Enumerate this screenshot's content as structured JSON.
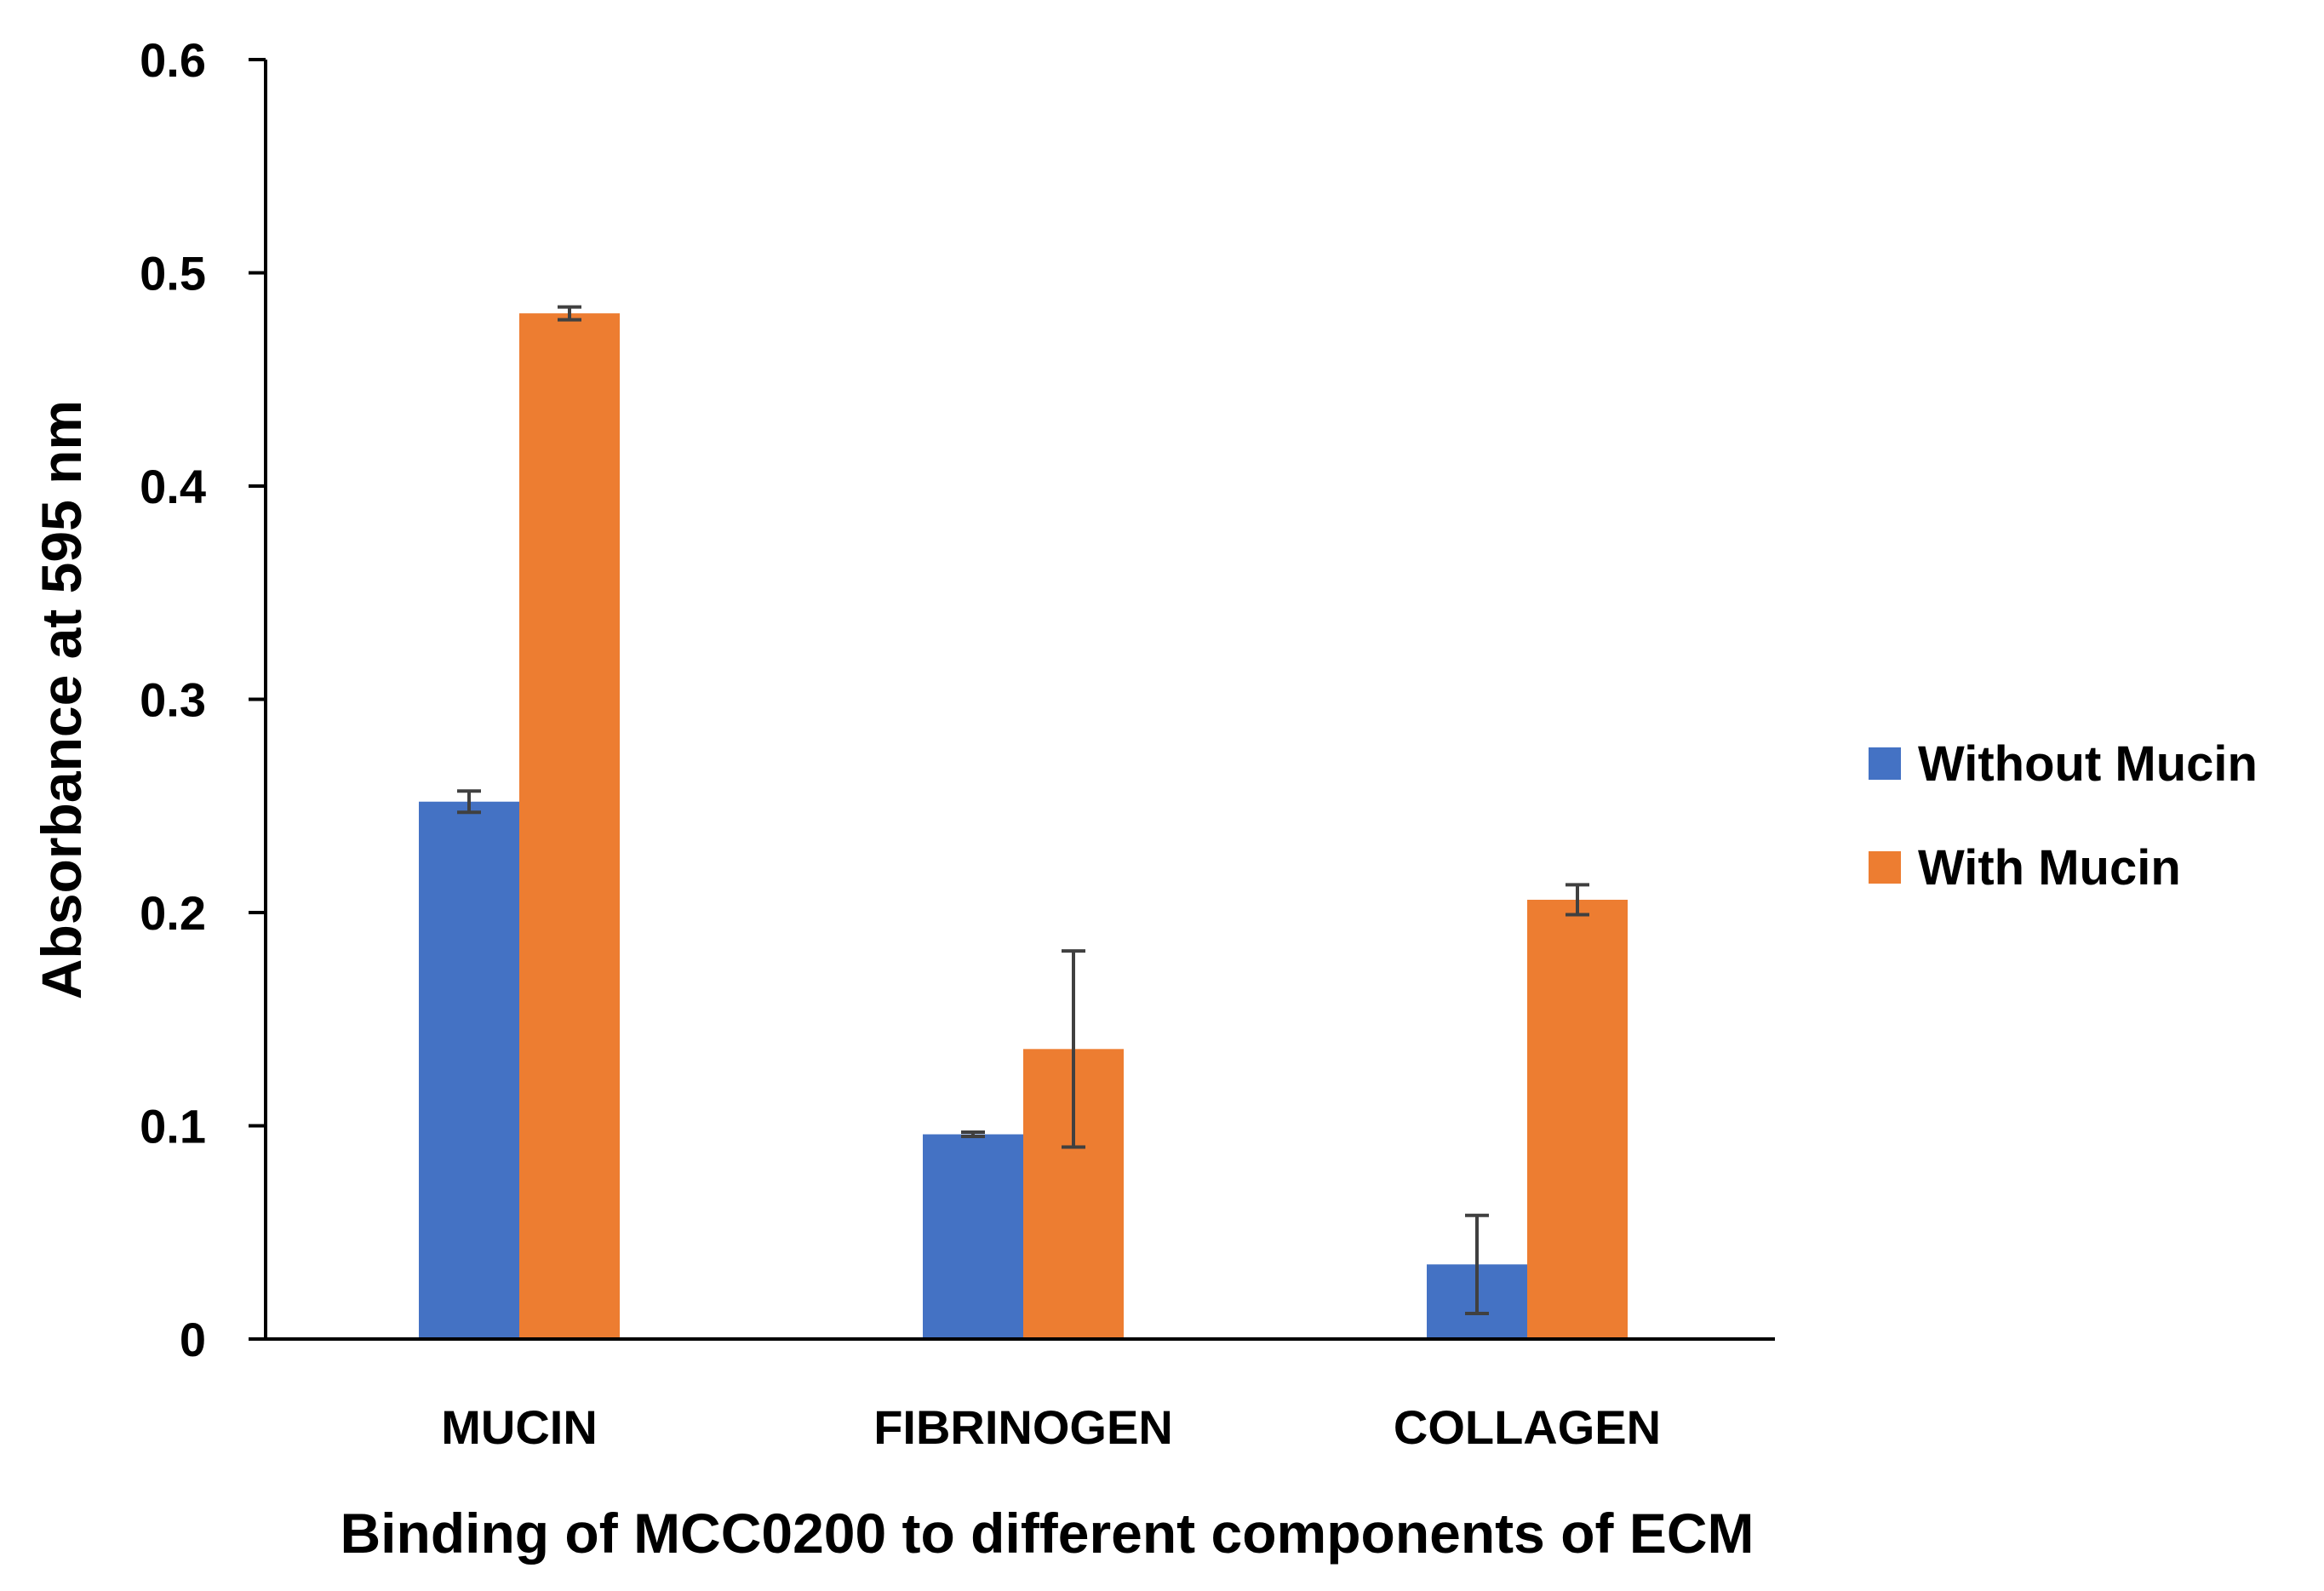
{
  "chart_data": {
    "type": "bar",
    "title": "",
    "xlabel": "Binding of MCC0200 to different components of ECM",
    "ylabel": "Absorbance at 595 nm",
    "categories": [
      "MUCIN",
      "FIBRINOGEN",
      "COLLAGEN"
    ],
    "ylim": [
      0,
      0.6
    ],
    "yticks": [
      0,
      0.1,
      0.2,
      0.3,
      0.4,
      0.5,
      0.6
    ],
    "ytick_labels": [
      "0",
      "0.1",
      "0.2",
      "0.3",
      "0.4",
      "0.5",
      "0.6"
    ],
    "grid": false,
    "legend_position": "right",
    "series": [
      {
        "name": "Without Mucin",
        "color": "#4472C4",
        "values": [
          0.252,
          0.096,
          0.035
        ],
        "errors": [
          0.005,
          0.001,
          0.023
        ]
      },
      {
        "name": "With Mucin",
        "color": "#ED7D31",
        "values": [
          0.481,
          0.136,
          0.206
        ],
        "errors": [
          0.003,
          0.046,
          0.007
        ]
      }
    ]
  }
}
